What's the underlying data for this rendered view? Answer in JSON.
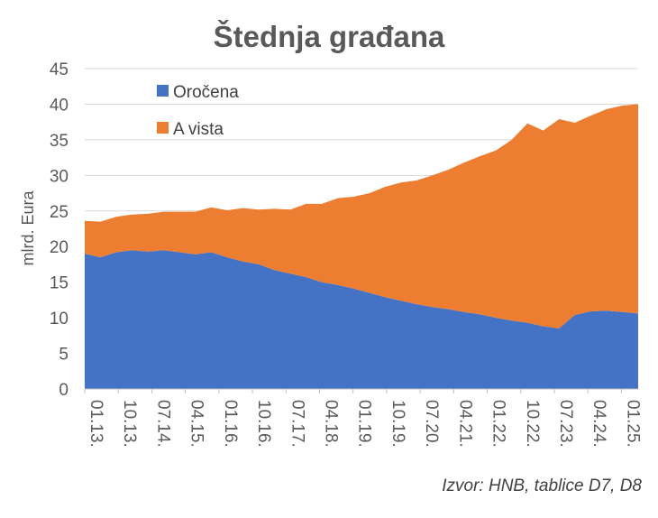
{
  "chart_data": {
    "type": "area",
    "stacked": true,
    "title": "Štednja građana",
    "ylabel": "mlrd. Eura",
    "xlabel": "",
    "ylim": [
      0,
      45
    ],
    "y_ticks": [
      0,
      5,
      10,
      15,
      20,
      25,
      30,
      35,
      40,
      45
    ],
    "x_tick_labels": [
      "01.13.",
      "10.13.",
      "07.14.",
      "04.15.",
      "01.16.",
      "10.16.",
      "07.17.",
      "04.18.",
      "01.19.",
      "10.19.",
      "07.20.",
      "04.21.",
      "01.22.",
      "10.22.",
      "07.23.",
      "04.24.",
      "01.25."
    ],
    "grid": true,
    "legend_position": "top-left",
    "source": "Izvor: HNB, tablice D7, D8",
    "series": [
      {
        "name": "Oročena",
        "color": "#4472c4",
        "values": [
          19.0,
          18.5,
          19.2,
          19.5,
          19.3,
          19.5,
          19.2,
          18.9,
          19.2,
          18.5,
          17.9,
          17.5,
          16.7,
          16.2,
          15.7,
          15.0,
          14.6,
          14.1,
          13.5,
          12.9,
          12.4,
          11.9,
          11.5,
          11.2,
          10.8,
          10.5,
          10.0,
          9.6,
          9.3,
          8.8,
          8.5,
          10.4,
          10.9,
          11.0,
          10.8,
          10.6
        ]
      },
      {
        "name": "A vista",
        "color": "#ed7d31",
        "values": [
          4.6,
          5.0,
          5.0,
          5.0,
          5.3,
          5.4,
          5.7,
          6.0,
          6.3,
          6.6,
          7.5,
          7.7,
          8.6,
          9.0,
          10.3,
          11.0,
          12.2,
          12.9,
          14.0,
          15.5,
          16.6,
          17.4,
          18.5,
          19.6,
          21.0,
          22.2,
          23.5,
          25.4,
          28.0,
          27.5,
          29.4,
          27.0,
          27.5,
          28.3,
          29.0,
          29.4
        ]
      }
    ]
  }
}
